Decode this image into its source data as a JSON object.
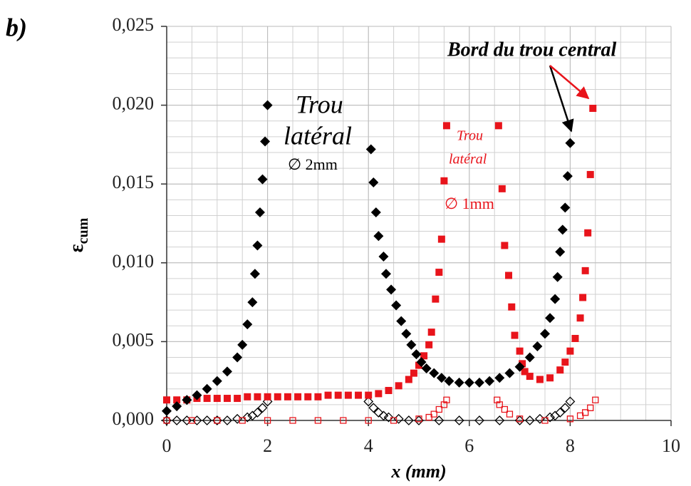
{
  "chart_data": {
    "type": "scatter",
    "panel_label": "b)",
    "x_label": "x (mm)",
    "y_label": {
      "symbol": "ε",
      "subscript": "cum"
    },
    "annotations": [
      "Trou",
      "latéral",
      "∅ 2mm",
      "Trou",
      "latéral",
      "∅ 1mm",
      "Bord du trou central"
    ],
    "xlim": [
      0,
      10
    ],
    "xticks": [
      0,
      2,
      4,
      6,
      8,
      10
    ],
    "ylim": [
      0,
      0.025
    ],
    "yticks": [
      {
        "value": 0,
        "label": "0,000"
      },
      {
        "value": 0.005,
        "label": "0,005"
      },
      {
        "value": 0.01,
        "label": "0,010"
      },
      {
        "value": 0.015,
        "label": "0,015"
      },
      {
        "value": 0.02,
        "label": "0,020"
      },
      {
        "value": 0.025,
        "label": "0,025"
      }
    ],
    "grid": true,
    "grid_minor": {
      "x": 0.5,
      "y": 0.001
    },
    "series": [
      {
        "color": "#000000",
        "marker": "diamond",
        "filled": false,
        "x": [
          0,
          0.2,
          0.4,
          0.6,
          0.8,
          1.0,
          1.2,
          1.4,
          1.6,
          1.7,
          1.8,
          1.9,
          2.0,
          4.0,
          4.1,
          4.2,
          4.3,
          4.4,
          4.6,
          4.8,
          5.0,
          5.4,
          5.8,
          6.2,
          6.6,
          7.0,
          7.2,
          7.4,
          7.6,
          7.7,
          7.8,
          7.9,
          8.0
        ],
        "values": [
          0,
          0,
          0,
          0,
          0,
          0,
          0,
          0.0001,
          0.0002,
          0.0003,
          0.0005,
          0.0008,
          0.0012,
          0.0012,
          0.0008,
          0.0005,
          0.0003,
          0.0002,
          0.0001,
          0,
          0,
          0,
          0,
          0,
          0,
          0,
          0,
          0.0001,
          0.0002,
          0.0003,
          0.0005,
          0.0008,
          0.0012
        ]
      },
      {
        "color": "#e8141b",
        "marker": "square",
        "filled": false,
        "x": [
          0,
          0.5,
          1,
          1.5,
          2,
          2.5,
          3,
          3.5,
          4,
          4.5,
          5,
          5.2,
          5.3,
          5.4,
          5.5,
          5.55,
          6.55,
          6.6,
          6.7,
          6.8,
          7,
          7.5,
          8,
          8.2,
          8.3,
          8.4,
          8.5
        ],
        "values": [
          0,
          0,
          0,
          0,
          0,
          0,
          0,
          0,
          0,
          0,
          0.0001,
          0.0002,
          0.0004,
          0.0007,
          0.001,
          0.0013,
          0.0013,
          0.001,
          0.0007,
          0.0004,
          0.0001,
          0,
          0.0001,
          0.0003,
          0.0005,
          0.0008,
          0.0013
        ]
      },
      {
        "color": "#e8141b",
        "marker": "square",
        "filled": true,
        "x": [
          0,
          0.2,
          0.4,
          0.6,
          0.8,
          1.0,
          1.2,
          1.4,
          1.6,
          1.8,
          2.0,
          2.2,
          2.4,
          2.6,
          2.8,
          3.0,
          3.2,
          3.4,
          3.6,
          3.8,
          4.0,
          4.2,
          4.4,
          4.6,
          4.8,
          4.9,
          5.0,
          5.1,
          5.2,
          5.25,
          5.33,
          5.4,
          5.45,
          5.5,
          5.55,
          6.58,
          6.65,
          6.7,
          6.78,
          6.84,
          6.9,
          7.0,
          7.05,
          7.1,
          7.2,
          7.4,
          7.6,
          7.8,
          7.9,
          8.0,
          8.1,
          8.2,
          8.25,
          8.3,
          8.35,
          8.4,
          8.45
        ],
        "values": [
          0.0013,
          0.0013,
          0.0013,
          0.0014,
          0.0014,
          0.0014,
          0.0014,
          0.0014,
          0.0015,
          0.0015,
          0.0015,
          0.0015,
          0.0015,
          0.0015,
          0.0015,
          0.0015,
          0.0016,
          0.0016,
          0.0016,
          0.0016,
          0.0016,
          0.0017,
          0.0019,
          0.0022,
          0.0026,
          0.003,
          0.0035,
          0.0041,
          0.0048,
          0.0056,
          0.0077,
          0.0094,
          0.0115,
          0.0152,
          0.0187,
          0.0187,
          0.0147,
          0.0111,
          0.0092,
          0.0072,
          0.0054,
          0.0044,
          0.0036,
          0.0031,
          0.0028,
          0.0026,
          0.0027,
          0.0032,
          0.0037,
          0.0044,
          0.0052,
          0.0065,
          0.0078,
          0.0095,
          0.0119,
          0.0156,
          0.0198
        ]
      },
      {
        "color": "#000000",
        "marker": "diamond",
        "filled": true,
        "x": [
          0,
          0.2,
          0.4,
          0.6,
          0.8,
          1.0,
          1.2,
          1.4,
          1.5,
          1.6,
          1.7,
          1.75,
          1.8,
          1.85,
          1.9,
          1.95,
          2.0,
          4.05,
          4.1,
          4.15,
          4.2,
          4.3,
          4.35,
          4.45,
          4.55,
          4.65,
          4.75,
          4.85,
          4.95,
          5.05,
          5.15,
          5.3,
          5.45,
          5.6,
          5.8,
          6.0,
          6.2,
          6.4,
          6.6,
          6.8,
          7.0,
          7.2,
          7.35,
          7.5,
          7.6,
          7.7,
          7.75,
          7.8,
          7.85,
          7.9,
          7.95,
          8.0
        ],
        "values": [
          0.0006,
          0.0009,
          0.0013,
          0.0016,
          0.002,
          0.0025,
          0.0031,
          0.004,
          0.0048,
          0.0061,
          0.0075,
          0.0093,
          0.0111,
          0.0132,
          0.0153,
          0.0177,
          0.02,
          0.0172,
          0.0151,
          0.0132,
          0.0117,
          0.0104,
          0.0093,
          0.0083,
          0.0073,
          0.0063,
          0.0055,
          0.0048,
          0.0042,
          0.0037,
          0.0033,
          0.003,
          0.0027,
          0.0025,
          0.0024,
          0.0024,
          0.0024,
          0.0025,
          0.0027,
          0.003,
          0.0034,
          0.004,
          0.0047,
          0.0055,
          0.0065,
          0.0077,
          0.0091,
          0.0107,
          0.0121,
          0.0135,
          0.0155,
          0.0176
        ]
      }
    ]
  }
}
